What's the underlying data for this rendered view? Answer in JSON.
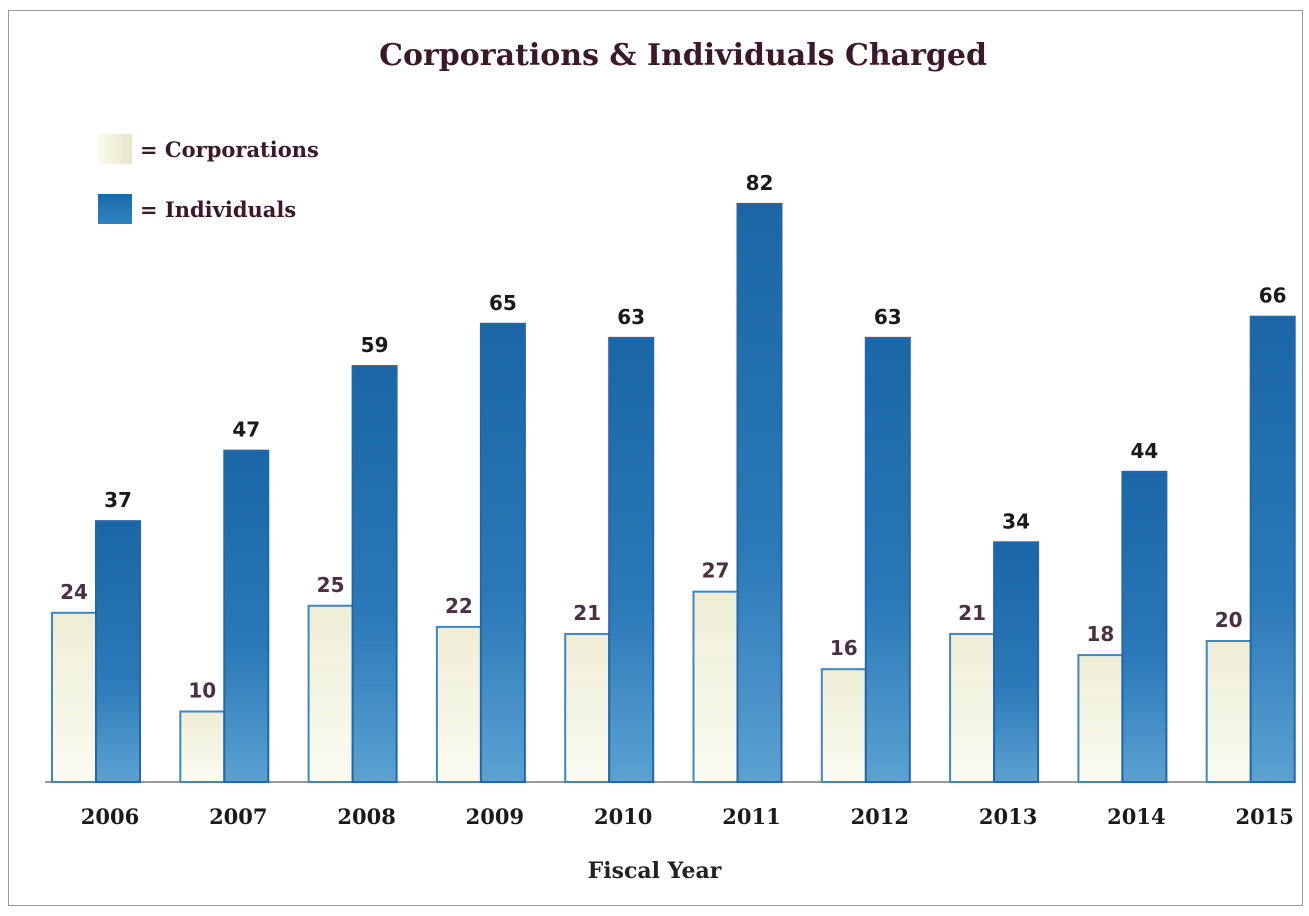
{
  "chart_data": {
    "type": "bar",
    "title": "Corporations & Individuals Charged",
    "xlabel": "Fiscal Year",
    "ylabel": "",
    "categories": [
      "2006",
      "2007",
      "2008",
      "2009",
      "2010",
      "2011",
      "2012",
      "2013",
      "2014",
      "2015"
    ],
    "series": [
      {
        "name": "Corporations",
        "values": [
          24,
          10,
          25,
          22,
          21,
          27,
          16,
          21,
          18,
          20
        ],
        "color": "#f1f0dc"
      },
      {
        "name": "Individuals",
        "values": [
          37,
          47,
          59,
          65,
          63,
          82,
          63,
          34,
          44,
          66
        ],
        "color": "#2a78b8"
      }
    ],
    "legend": [
      {
        "label": "= Corporations"
      },
      {
        "label": "= Individuals"
      }
    ],
    "legend_position": "top-left",
    "ylim": [
      0,
      82
    ],
    "grid": false,
    "data_labels": true
  }
}
